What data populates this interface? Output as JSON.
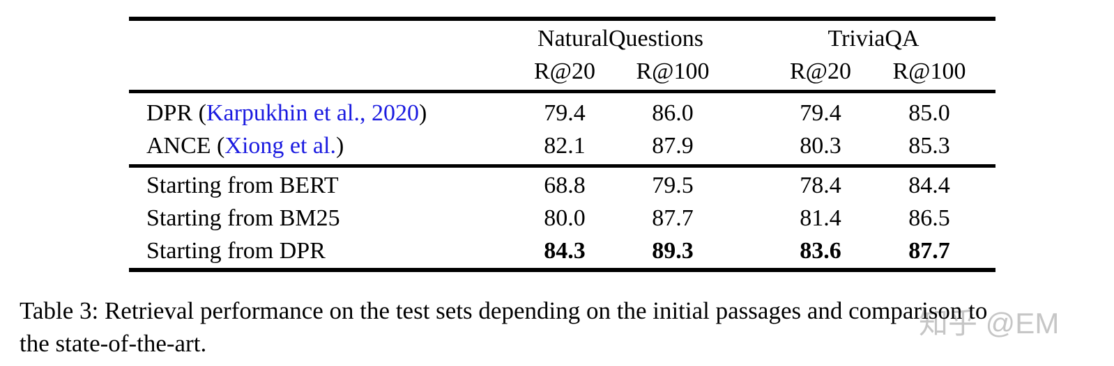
{
  "link_color": "#1a1ae0",
  "table": {
    "groups": [
      {
        "label": "NaturalQuestions"
      },
      {
        "label": "TriviaQA"
      }
    ],
    "sub_headers": [
      "R@20",
      "R@100",
      "R@20",
      "R@100"
    ],
    "rows": [
      {
        "pre": "DPR (",
        "cite": "Karpukhin et al., 2020",
        "post": ")",
        "values": [
          "79.4",
          "86.0",
          "79.4",
          "85.0"
        ]
      },
      {
        "pre": "ANCE (",
        "cite": "Xiong et al.",
        "post": ")",
        "values": [
          "82.1",
          "87.9",
          "80.3",
          "85.3"
        ]
      },
      {
        "pre": "Starting from BERT",
        "values": [
          "68.8",
          "79.5",
          "78.4",
          "84.4"
        ]
      },
      {
        "pre": "Starting from BM25",
        "values": [
          "80.0",
          "87.7",
          "81.4",
          "86.5"
        ]
      },
      {
        "pre": "Starting from DPR",
        "values": [
          "84.3",
          "89.3",
          "83.6",
          "87.7"
        ]
      }
    ]
  },
  "caption": {
    "line1": "Table 3: Retrieval performance on the test sets depending on the initial passages and comparison to",
    "line2": "the state-of-the-art."
  },
  "watermark": {
    "text": "知乎 @EM"
  }
}
